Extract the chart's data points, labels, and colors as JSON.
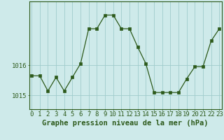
{
  "x": [
    0,
    1,
    2,
    3,
    4,
    5,
    6,
    7,
    8,
    9,
    10,
    11,
    12,
    13,
    14,
    15,
    16,
    17,
    18,
    19,
    20,
    21,
    22,
    23
  ],
  "y": [
    1015.65,
    1015.65,
    1015.15,
    1015.6,
    1015.15,
    1015.6,
    1016.05,
    1017.2,
    1017.2,
    1017.65,
    1017.65,
    1017.2,
    1017.2,
    1016.6,
    1016.05,
    1015.1,
    1015.1,
    1015.1,
    1015.1,
    1015.55,
    1015.95,
    1015.95,
    1016.8,
    1017.2
  ],
  "line_color": "#2d5a1b",
  "marker": "s",
  "marker_size": 2.5,
  "bg_color": "#ceeaea",
  "grid_color": "#a0cccc",
  "border_color": "#2d5a1b",
  "yticks": [
    1015,
    1016
  ],
  "ylim": [
    1014.55,
    1018.1
  ],
  "xlim": [
    -0.3,
    23.3
  ],
  "xlabel": "Graphe pression niveau de la mer (hPa)",
  "xlabel_fontsize": 7.5,
  "tick_fontsize": 6.5
}
